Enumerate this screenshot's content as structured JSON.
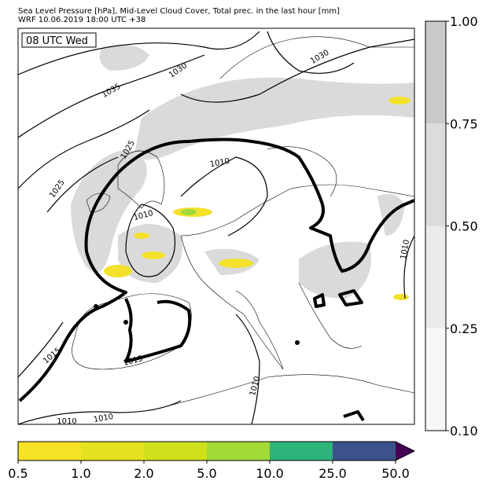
{
  "header": {
    "title": "Sea Level Pressure [hPa], Mid-Level Cloud Cover, Total prec. in the last hour [mm]",
    "subtitle": "WRF 10.06.2019 18:00 UTC +38"
  },
  "map": {
    "time_label": "08 UTC Wed",
    "isobar_labels": [
      "1030",
      "1035",
      "1030",
      "1025",
      "1025",
      "1010",
      "1010",
      "1010",
      "1015",
      "1015",
      "1010",
      "1010",
      "1010"
    ]
  },
  "cloud_colorbar": {
    "ticks": [
      "0.10",
      "0.25",
      "0.50",
      "0.75",
      "1.00"
    ]
  },
  "precip_colorbar": {
    "ticks": [
      "0.5",
      "1.0",
      "2.0",
      "5.0",
      "10.0",
      "25.0",
      "50.0"
    ]
  }
}
